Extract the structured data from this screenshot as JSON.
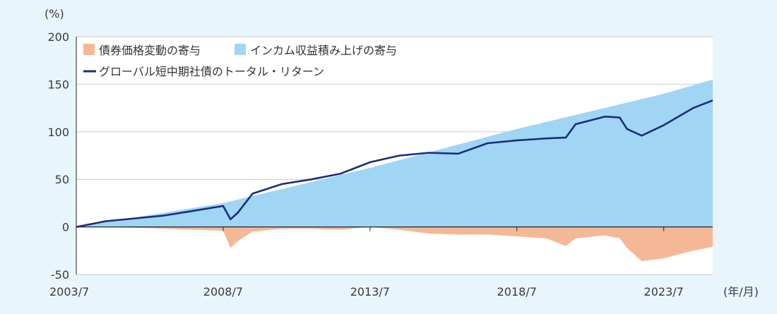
{
  "chart_data": {
    "type": "area",
    "title": "",
    "ylabel": "(%)",
    "xlabel": "(年/月)",
    "ylim": [
      -50,
      200
    ],
    "yticks": [
      200,
      150,
      100,
      50,
      0,
      -50
    ],
    "xticks": [
      "2003/7",
      "2008/7",
      "2013/7",
      "2018/7",
      "2023/7"
    ],
    "x_start": "2003/7",
    "x_end": "2025/3",
    "grid": true,
    "legend_position": "top-left",
    "colors": {
      "price": "#f5b896",
      "income": "#a0d5f4",
      "total": "#1c2d7a",
      "grid": "#cccccc",
      "background": "#e9f5fc",
      "plot": "#ffffff"
    },
    "series": [
      {
        "name": "債券価格変動の寄与",
        "kind": "area",
        "x": [
          "2003/7",
          "2004/7",
          "2005/7",
          "2006/7",
          "2007/7",
          "2008/7",
          "2008/10",
          "2009/1",
          "2009/7",
          "2010/7",
          "2011/7",
          "2012/7",
          "2013/7",
          "2014/7",
          "2015/7",
          "2016/7",
          "2017/7",
          "2018/7",
          "2019/7",
          "2020/3",
          "2020/7",
          "2021/7",
          "2022/1",
          "2022/4",
          "2022/10",
          "2023/7",
          "2024/7",
          "2025/3"
        ],
        "values": [
          0,
          0,
          -1,
          -2,
          -3,
          -4,
          -22,
          -15,
          -5,
          -2,
          -2,
          -3,
          0,
          -3,
          -7,
          -8,
          -8,
          -10,
          -12,
          -20,
          -12,
          -9,
          -12,
          -22,
          -36,
          -33,
          -25,
          -21
        ]
      },
      {
        "name": "インカム収益積み上げの寄与",
        "kind": "area",
        "x": [
          "2003/7",
          "2008/7",
          "2013/7",
          "2018/7",
          "2023/7",
          "2025/3"
        ],
        "values": [
          0,
          25,
          62,
          103,
          140,
          155
        ]
      },
      {
        "name": "グローバル短中期社債のトータル・リターン",
        "kind": "line",
        "x": [
          "2003/7",
          "2004/7",
          "2005/7",
          "2006/7",
          "2007/7",
          "2008/7",
          "2008/10",
          "2009/1",
          "2009/7",
          "2010/7",
          "2011/7",
          "2012/7",
          "2013/7",
          "2014/7",
          "2015/7",
          "2016/7",
          "2017/7",
          "2018/7",
          "2019/7",
          "2020/3",
          "2020/7",
          "2021/7",
          "2022/1",
          "2022/4",
          "2022/10",
          "2023/7",
          "2024/7",
          "2025/3"
        ],
        "values": [
          0,
          6,
          9,
          12,
          17,
          22,
          8,
          15,
          35,
          45,
          50,
          56,
          68,
          75,
          78,
          77,
          88,
          91,
          93,
          94,
          108,
          116,
          115,
          103,
          96,
          107,
          125,
          133
        ]
      }
    ]
  }
}
